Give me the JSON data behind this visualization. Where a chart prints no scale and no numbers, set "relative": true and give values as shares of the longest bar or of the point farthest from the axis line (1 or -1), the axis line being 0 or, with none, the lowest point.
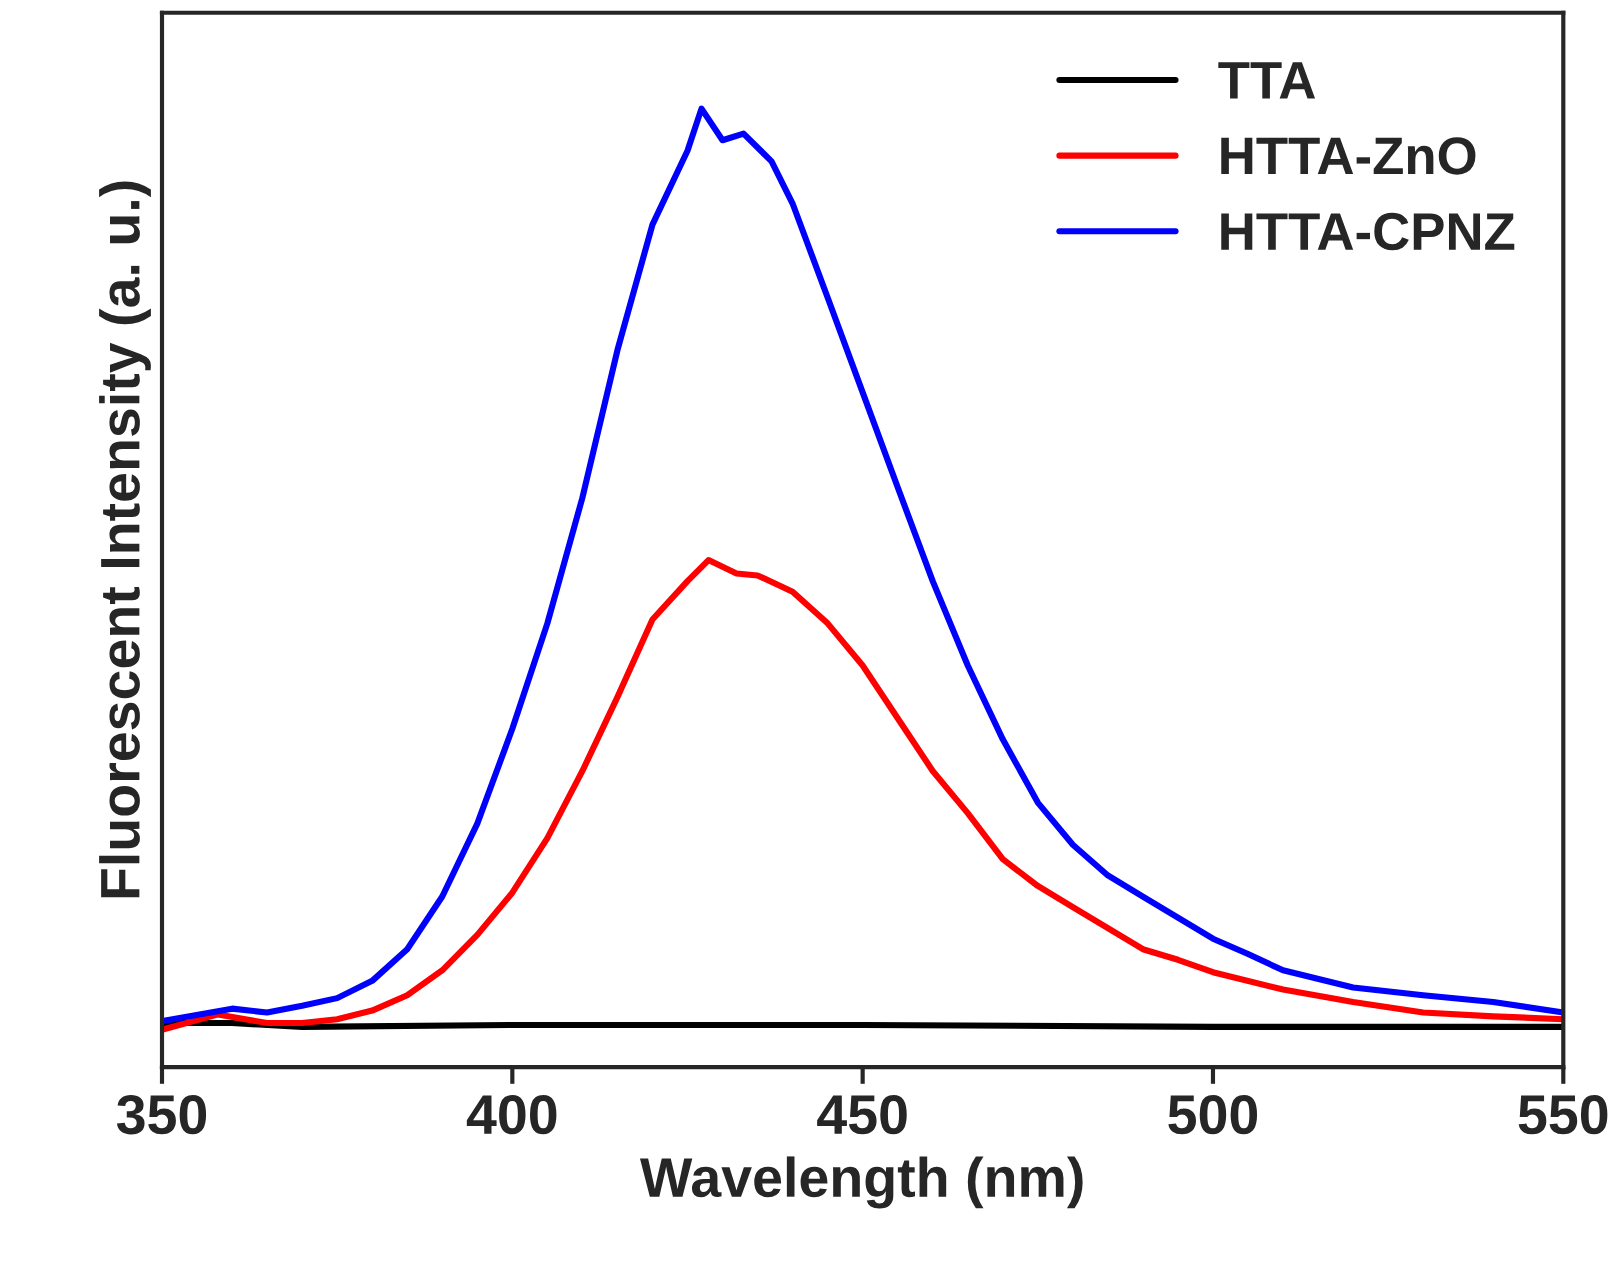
{
  "chart_data": {
    "type": "line",
    "relative": true,
    "xlabel": "Wavelength (nm)",
    "ylabel": "Fluorescent Intensity (a. u.)",
    "xlim": [
      350,
      550
    ],
    "xticks": [
      350,
      400,
      450,
      500,
      550
    ],
    "tick_labels": "x",
    "legend": "top right",
    "grid": false,
    "line_style": "solid",
    "marker": "none",
    "series": [
      {
        "name": "TTA",
        "color": "#000000",
        "x": [
          350,
          360,
          370,
          400,
          450,
          500,
          550
        ],
        "values": [
          0.046,
          0.046,
          0.042,
          0.044,
          0.044,
          0.042,
          0.042
        ]
      },
      {
        "name": "HTTA-ZnO",
        "color": "#ff0000",
        "x": [
          350,
          358,
          365,
          370,
          375,
          380,
          385,
          390,
          395,
          400,
          405,
          410,
          415,
          420,
          425,
          428,
          432,
          435,
          440,
          445,
          450,
          455,
          460,
          465,
          470,
          475,
          480,
          485,
          490,
          495,
          500,
          510,
          520,
          530,
          540,
          550
        ],
        "values": [
          0.039,
          0.055,
          0.046,
          0.046,
          0.05,
          0.059,
          0.075,
          0.101,
          0.138,
          0.182,
          0.239,
          0.309,
          0.386,
          0.467,
          0.507,
          0.529,
          0.515,
          0.513,
          0.496,
          0.463,
          0.419,
          0.364,
          0.309,
          0.265,
          0.217,
          0.189,
          0.167,
          0.145,
          0.123,
          0.112,
          0.099,
          0.081,
          0.068,
          0.057,
          0.053,
          0.05
        ]
      },
      {
        "name": "HTTA-CPNZ",
        "color": "#0000ff",
        "x": [
          350,
          360,
          365,
          370,
          375,
          380,
          385,
          390,
          395,
          400,
          405,
          410,
          415,
          420,
          425,
          427,
          430,
          433,
          437,
          440,
          445,
          450,
          455,
          460,
          465,
          470,
          475,
          480,
          485,
          490,
          495,
          500,
          505,
          510,
          520,
          530,
          540,
          550
        ],
        "values": [
          0.048,
          0.061,
          0.057,
          0.064,
          0.072,
          0.09,
          0.123,
          0.178,
          0.254,
          0.353,
          0.463,
          0.594,
          0.748,
          0.879,
          0.956,
          1,
          0.967,
          0.974,
          0.945,
          0.901,
          0.803,
          0.704,
          0.605,
          0.507,
          0.419,
          0.342,
          0.276,
          0.232,
          0.2,
          0.178,
          0.156,
          0.134,
          0.118,
          0.101,
          0.083,
          0.075,
          0.068,
          0.057
        ]
      }
    ]
  }
}
